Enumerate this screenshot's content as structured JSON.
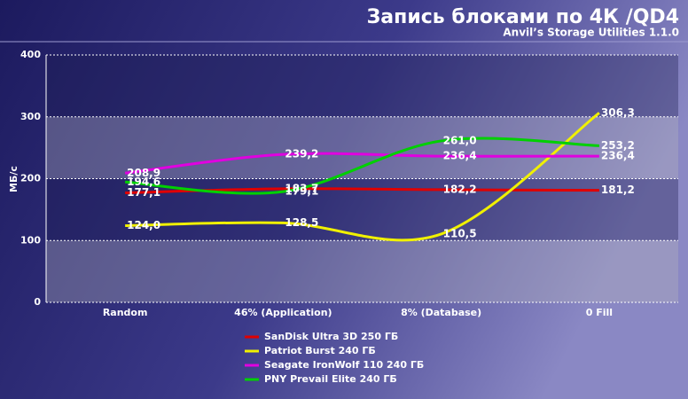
{
  "chart_data": {
    "type": "line",
    "title": "Запись блоками по 4К /QD4",
    "subtitle": "Anvil’s Storage Utilities 1.1.0",
    "y_label": "МБ/с",
    "categories": [
      "Random",
      "46% (Application)",
      "8% (Database)",
      "0 Fill"
    ],
    "ylim": [
      0,
      400
    ],
    "yticks": [
      0,
      100,
      200,
      300,
      400
    ],
    "grid": true,
    "series": [
      {
        "name": "SanDisk Ultra 3D 250 ГБ",
        "color": "#e00000",
        "values": [
          177.1,
          183.7,
          182.2,
          181.2
        ],
        "value_labels": [
          "177,1",
          "183,7",
          "182,2",
          "181,2"
        ]
      },
      {
        "name": "Patriot Burst 240 ГБ",
        "color": "#f0f000",
        "values": [
          124.0,
          128.5,
          110.5,
          306.3
        ],
        "value_labels": [
          "124,0",
          "128,5",
          "110,5",
          "306,3"
        ]
      },
      {
        "name": "Seagate IronWolf 110 240 ГБ",
        "color": "#e000e0",
        "values": [
          208.9,
          239.2,
          236.4,
          236.4
        ],
        "value_labels": [
          "208,9",
          "239,2",
          "236,4",
          "236,4"
        ]
      },
      {
        "name": "PNY Prevail Elite 240 ГБ",
        "color": "#00d000",
        "values": [
          194.6,
          179.1,
          261.0,
          253.2
        ],
        "value_labels": [
          "194,6",
          "179,1",
          "261,0",
          "253,2"
        ]
      }
    ]
  }
}
